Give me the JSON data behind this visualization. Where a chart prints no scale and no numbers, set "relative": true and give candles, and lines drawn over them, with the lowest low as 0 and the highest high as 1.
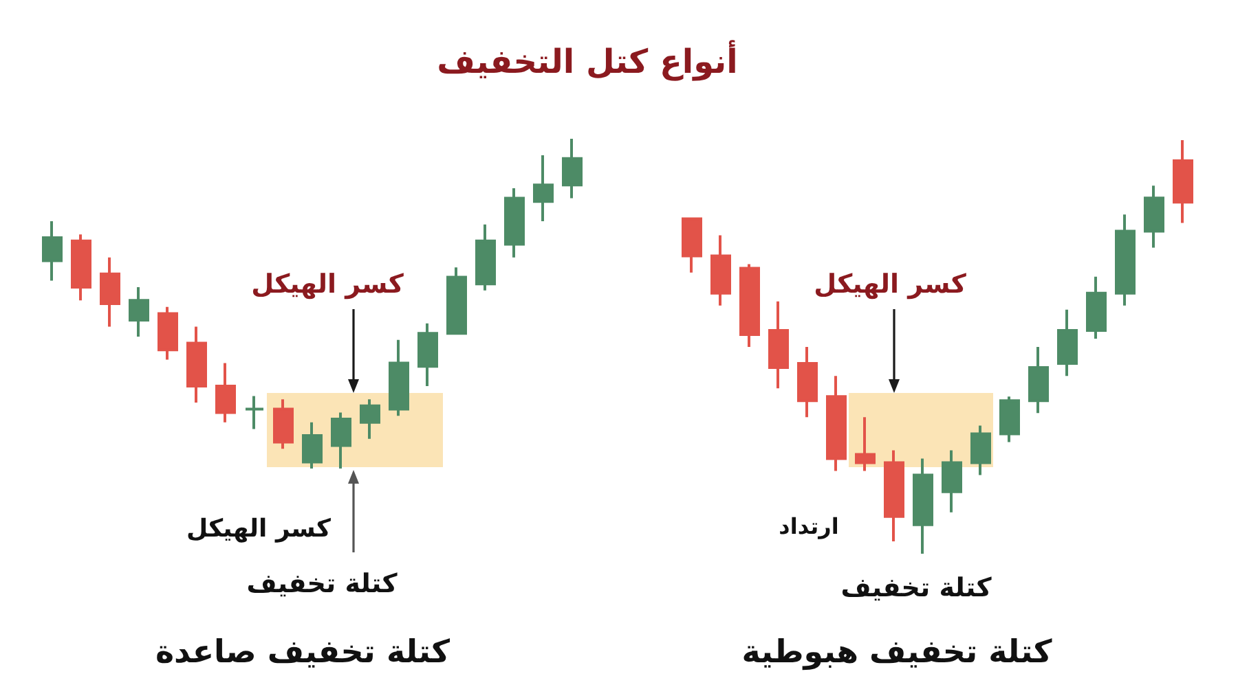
{
  "chart_data": [
    {
      "type": "candlestick",
      "title": "أنواع كتل التخفيف",
      "xlabel": "كتلة تخفيف صاعدة",
      "annotations": [
        "كسر الهيكل",
        "كسر الهيكل",
        "كتلة تخفيف"
      ],
      "relative": true,
      "categories": [
        null,
        null,
        null,
        null,
        null,
        null,
        null,
        null,
        null,
        null,
        null,
        null,
        null,
        null,
        null,
        null,
        null,
        null,
        null
      ],
      "ohlc": [
        [
          0.63,
          0.75,
          0.57,
          0.7
        ],
        [
          0.69,
          0.71,
          0.51,
          0.55
        ],
        [
          0.59,
          0.64,
          0.43,
          0.5
        ],
        [
          0.45,
          0.55,
          0.4,
          0.51
        ],
        [
          0.47,
          0.49,
          0.33,
          0.36
        ],
        [
          0.38,
          0.43,
          0.2,
          0.25
        ],
        [
          0.25,
          0.32,
          0.14,
          0.17
        ],
        [
          0.18,
          0.22,
          0.12,
          0.18
        ],
        [
          0.18,
          0.21,
          0.06,
          0.08
        ],
        [
          0.02,
          0.14,
          0.0,
          0.1
        ],
        [
          0.07,
          0.17,
          0.0,
          0.15
        ],
        [
          0.14,
          0.21,
          0.09,
          0.19
        ],
        [
          0.18,
          0.39,
          0.16,
          0.32
        ],
        [
          0.31,
          0.44,
          0.25,
          0.41
        ],
        [
          0.41,
          0.61,
          0.41,
          0.58
        ],
        [
          0.56,
          0.74,
          0.54,
          0.69
        ],
        [
          0.68,
          0.85,
          0.64,
          0.82
        ],
        [
          0.81,
          0.95,
          0.75,
          0.86
        ],
        [
          0.86,
          1.0,
          0.82,
          0.94
        ]
      ],
      "colors": [
        "#4d8b66",
        "#e25349",
        "#e25349",
        "#4d8b66",
        "#e25349",
        "#e25349",
        "#e25349",
        "#4d8b66",
        "#e25349",
        "#4d8b66",
        "#4d8b66",
        "#4d8b66",
        "#4d8b66",
        "#4d8b66",
        "#4d8b66",
        "#4d8b66",
        "#4d8b66",
        "#4d8b66",
        "#4d8b66"
      ]
    },
    {
      "type": "candlestick",
      "xlabel": "كتلة تخفيف هبوطية",
      "annotations": [
        "كسر الهيكل",
        "ارتداد",
        "كتلة تخفيف"
      ],
      "relative": true,
      "categories": [
        null,
        null,
        null,
        null,
        null,
        null,
        null,
        null,
        null,
        null,
        null,
        null,
        null,
        null,
        null,
        null,
        null,
        null
      ],
      "ohlc": [
        [
          0.81,
          0.81,
          0.68,
          0.72
        ],
        [
          0.72,
          0.77,
          0.6,
          0.63
        ],
        [
          0.69,
          0.7,
          0.5,
          0.53
        ],
        [
          0.54,
          0.61,
          0.4,
          0.45
        ],
        [
          0.46,
          0.5,
          0.33,
          0.37
        ],
        [
          0.38,
          0.43,
          0.2,
          0.23
        ],
        [
          0.24,
          0.33,
          0.2,
          0.22
        ],
        [
          0.22,
          0.25,
          0.03,
          0.09
        ],
        [
          0.07,
          0.23,
          0.0,
          0.19
        ],
        [
          0.15,
          0.25,
          0.1,
          0.22
        ],
        [
          0.22,
          0.31,
          0.19,
          0.29
        ],
        [
          0.29,
          0.38,
          0.27,
          0.37
        ],
        [
          0.37,
          0.5,
          0.34,
          0.45
        ],
        [
          0.46,
          0.59,
          0.43,
          0.54
        ],
        [
          0.54,
          0.67,
          0.52,
          0.63
        ],
        [
          0.63,
          0.82,
          0.6,
          0.78
        ],
        [
          0.78,
          0.89,
          0.74,
          0.86
        ],
        [
          0.95,
          1.0,
          0.8,
          0.85
        ]
      ],
      "colors": [
        "#e25349",
        "#e25349",
        "#e25349",
        "#e25349",
        "#e25349",
        "#e25349",
        "#e25349",
        "#e25349",
        "#4d8b66",
        "#4d8b66",
        "#4d8b66",
        "#4d8b66",
        "#4d8b66",
        "#4d8b66",
        "#4d8b66",
        "#4d8b66",
        "#4d8b66",
        "#e25349"
      ]
    }
  ]
}
